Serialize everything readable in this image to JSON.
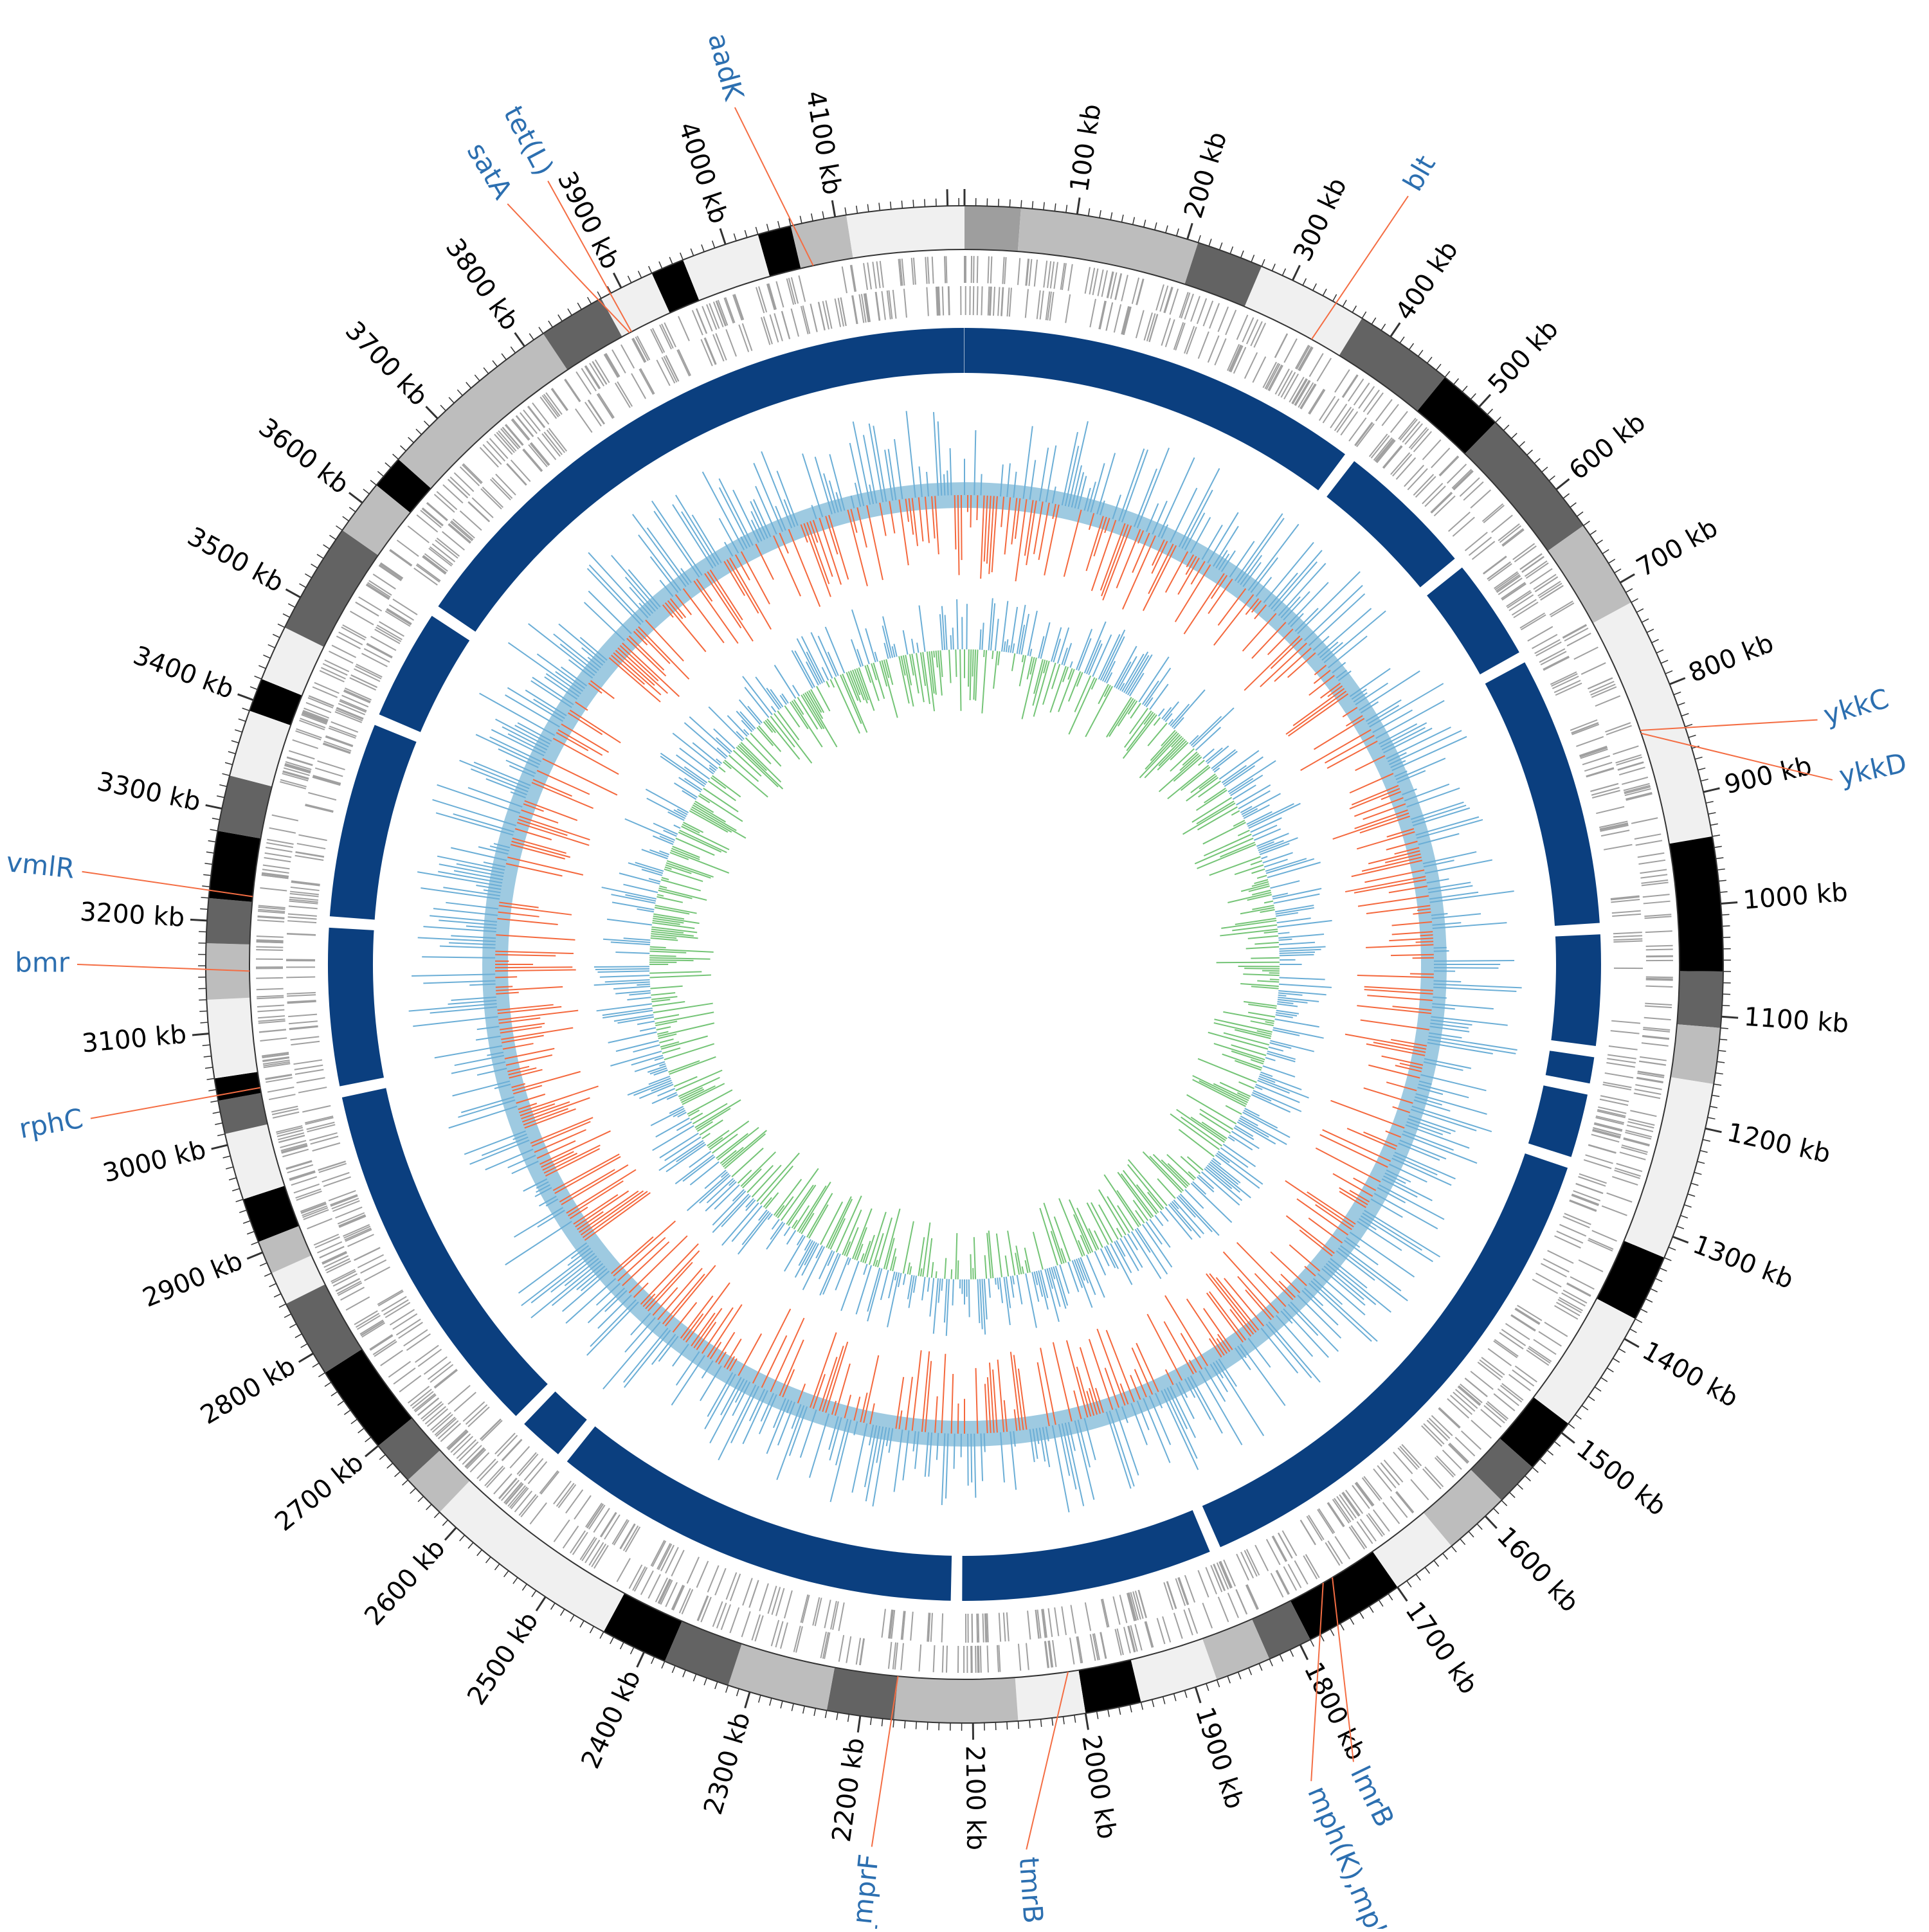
{
  "genome": {
    "total_kb": 4215,
    "tick_labels": [
      "100 kb",
      "200 kb",
      "300 kb",
      "400 kb",
      "500 kb",
      "600 kb",
      "700 kb",
      "800 kb",
      "900 kb",
      "1000 kb",
      "1100 kb",
      "1200 kb",
      "1300 kb",
      "1400 kb",
      "1500 kb",
      "1600 kb",
      "1700 kb",
      "1800 kb",
      "1900 kb",
      "2000 kb",
      "2100 kb",
      "2200 kb",
      "2300 kb",
      "2400 kb",
      "2500 kb",
      "2600 kb",
      "2700 kb",
      "2800 kb",
      "2900 kb",
      "3000 kb",
      "3100 kb",
      "3200 kb",
      "3300 kb",
      "3400 kb",
      "3500 kb",
      "3600 kb",
      "3700 kb",
      "3800 kb",
      "3900 kb",
      "4000 kb",
      "4100 kb"
    ],
    "tick_values": [
      100,
      200,
      300,
      400,
      500,
      600,
      700,
      800,
      900,
      1000,
      1100,
      1200,
      1300,
      1400,
      1500,
      1600,
      1700,
      1800,
      1900,
      2000,
      2100,
      2200,
      2300,
      2400,
      2500,
      2600,
      2700,
      2800,
      2900,
      3000,
      3100,
      3200,
      3300,
      3400,
      3500,
      3600,
      3700,
      3800,
      3900,
      4000,
      4100
    ]
  },
  "contig_blocks": [
    {
      "start": 0,
      "end": 50,
      "shade": "#9e9e9e"
    },
    {
      "start": 50,
      "end": 210,
      "shade": "#bdbdbd"
    },
    {
      "start": 210,
      "end": 270,
      "shade": "#636363"
    },
    {
      "start": 270,
      "end": 370,
      "shade": "#f0f0f0"
    },
    {
      "start": 370,
      "end": 460,
      "shade": "#636363"
    },
    {
      "start": 460,
      "end": 520,
      "shade": "#000000"
    },
    {
      "start": 520,
      "end": 640,
      "shade": "#636363"
    },
    {
      "start": 640,
      "end": 720,
      "shade": "#bdbdbd"
    },
    {
      "start": 720,
      "end": 940,
      "shade": "#f0f0f0"
    },
    {
      "start": 940,
      "end": 1060,
      "shade": "#000000"
    },
    {
      "start": 1060,
      "end": 1110,
      "shade": "#636363"
    },
    {
      "start": 1110,
      "end": 1160,
      "shade": "#bdbdbd"
    },
    {
      "start": 1160,
      "end": 1320,
      "shade": "#f0f0f0"
    },
    {
      "start": 1320,
      "end": 1380,
      "shade": "#000000"
    },
    {
      "start": 1380,
      "end": 1490,
      "shade": "#f0f0f0"
    },
    {
      "start": 1490,
      "end": 1540,
      "shade": "#000000"
    },
    {
      "start": 1540,
      "end": 1580,
      "shade": "#636363"
    },
    {
      "start": 1580,
      "end": 1640,
      "shade": "#bdbdbd"
    },
    {
      "start": 1640,
      "end": 1700,
      "shade": "#f0f0f0"
    },
    {
      "start": 1700,
      "end": 1790,
      "shade": "#000000"
    },
    {
      "start": 1790,
      "end": 1830,
      "shade": "#636363"
    },
    {
      "start": 1830,
      "end": 1880,
      "shade": "#bdbdbd"
    },
    {
      "start": 1880,
      "end": 1950,
      "shade": "#f0f0f0"
    },
    {
      "start": 1950,
      "end": 2000,
      "shade": "#000000"
    },
    {
      "start": 2000,
      "end": 2060,
      "shade": "#f0f0f0"
    },
    {
      "start": 2060,
      "end": 2170,
      "shade": "#bdbdbd"
    },
    {
      "start": 2170,
      "end": 2230,
      "shade": "#636363"
    },
    {
      "start": 2230,
      "end": 2320,
      "shade": "#bdbdbd"
    },
    {
      "start": 2320,
      "end": 2380,
      "shade": "#636363"
    },
    {
      "start": 2380,
      "end": 2440,
      "shade": "#000000"
    },
    {
      "start": 2440,
      "end": 2620,
      "shade": "#f0f0f0"
    },
    {
      "start": 2620,
      "end": 2660,
      "shade": "#bdbdbd"
    },
    {
      "start": 2660,
      "end": 2700,
      "shade": "#636363"
    },
    {
      "start": 2700,
      "end": 2780,
      "shade": "#000000"
    },
    {
      "start": 2780,
      "end": 2850,
      "shade": "#636363"
    },
    {
      "start": 2850,
      "end": 2880,
      "shade": "#f0f0f0"
    },
    {
      "start": 2880,
      "end": 2910,
      "shade": "#bdbdbd"
    },
    {
      "start": 2910,
      "end": 2950,
      "shade": "#000000"
    },
    {
      "start": 2950,
      "end": 3010,
      "shade": "#f0f0f0"
    },
    {
      "start": 3010,
      "end": 3040,
      "shade": "#636363"
    },
    {
      "start": 3040,
      "end": 3060,
      "shade": "#000000"
    },
    {
      "start": 3060,
      "end": 3130,
      "shade": "#f0f0f0"
    },
    {
      "start": 3130,
      "end": 3180,
      "shade": "#bdbdbd"
    },
    {
      "start": 3180,
      "end": 3220,
      "shade": "#636363"
    },
    {
      "start": 3220,
      "end": 3280,
      "shade": "#000000"
    },
    {
      "start": 3280,
      "end": 3330,
      "shade": "#636363"
    },
    {
      "start": 3330,
      "end": 3390,
      "shade": "#f0f0f0"
    },
    {
      "start": 3390,
      "end": 3420,
      "shade": "#000000"
    },
    {
      "start": 3420,
      "end": 3470,
      "shade": "#f0f0f0"
    },
    {
      "start": 3470,
      "end": 3570,
      "shade": "#636363"
    },
    {
      "start": 3570,
      "end": 3620,
      "shade": "#bdbdbd"
    },
    {
      "start": 3620,
      "end": 3650,
      "shade": "#000000"
    },
    {
      "start": 3650,
      "end": 3820,
      "shade": "#bdbdbd"
    },
    {
      "start": 3820,
      "end": 3880,
      "shade": "#636363"
    },
    {
      "start": 3880,
      "end": 3930,
      "shade": "#f0f0f0"
    },
    {
      "start": 3930,
      "end": 3960,
      "shade": "#000000"
    },
    {
      "start": 3960,
      "end": 4030,
      "shade": "#f0f0f0"
    },
    {
      "start": 4030,
      "end": 4060,
      "shade": "#000000"
    },
    {
      "start": 4060,
      "end": 4110,
      "shade": "#bdbdbd"
    },
    {
      "start": 4110,
      "end": 4215,
      "shade": "#f0f0f0"
    }
  ],
  "genes": [
    {
      "name": "aadK",
      "pos": 4072,
      "angle": -105
    },
    {
      "name": "tet(L)",
      "pos": 3890,
      "angle": -118
    },
    {
      "name": "satA",
      "pos": 3888,
      "angle": -121
    },
    {
      "name": "blt",
      "pos": 340,
      "angle": -60
    },
    {
      "name": "ykkC",
      "pos": 830,
      "angle": -16
    },
    {
      "name": "ykkD",
      "pos": 833,
      "angle": -12
    },
    {
      "name": "lmrB",
      "pos": 1745,
      "angle": 64
    },
    {
      "name": "mph(K),mphK",
      "pos": 1755,
      "angle": 67
    },
    {
      "name": "tmrB",
      "pos": 2010,
      "angle": 86
    },
    {
      "name": "Bsub_mprF",
      "pos": 2170,
      "angle": 96
    },
    {
      "name": "rphC",
      "pos": 3045,
      "angle": 170
    },
    {
      "name": "bmr",
      "pos": 3155,
      "angle": 180
    },
    {
      "name": "vmlR",
      "pos": 3225,
      "angle": 186
    }
  ],
  "colors": {
    "gene_label": "#2c6fb0",
    "leader_line": "#f46d43",
    "cds_ring": "#0b3f7f",
    "gc_content_pos": "#6baed6",
    "gc_content_neg": "#f4683d",
    "gc_content_band": "#9ecae1",
    "gc_skew_pos": "#6baed6",
    "gc_skew_neg": "#74c476",
    "orf_ticks": "#a0a0a0"
  }
}
